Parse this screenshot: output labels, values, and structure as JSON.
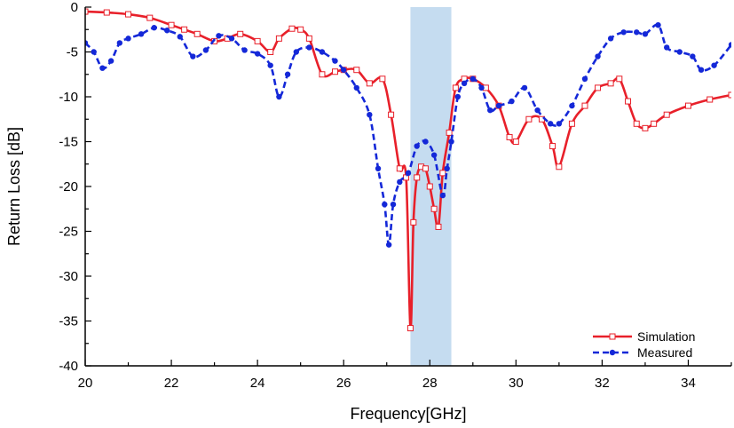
{
  "chart_data": {
    "type": "line",
    "xlabel": "Frequency[GHz]",
    "ylabel": "Return Loss [dB]",
    "xlim": [
      20,
      35
    ],
    "ylim": [
      -40,
      0
    ],
    "xticks": [
      20,
      22,
      24,
      26,
      28,
      30,
      32,
      34
    ],
    "yticks": [
      0,
      -5,
      -10,
      -15,
      -20,
      -25,
      -30,
      -35,
      -40
    ],
    "legend_position": "bottom-right",
    "shaded_band": {
      "x_start": 27.55,
      "x_end": 28.5,
      "color": "#c5dcf0"
    },
    "series": [
      {
        "name": "Simulation",
        "color": "#e8202a",
        "style": "solid",
        "marker": "open-square",
        "x": [
          20.0,
          20.5,
          21.0,
          21.5,
          22.0,
          22.3,
          22.6,
          23.0,
          23.3,
          23.6,
          24.0,
          24.3,
          24.5,
          24.8,
          25.0,
          25.2,
          25.5,
          25.8,
          26.0,
          26.3,
          26.6,
          26.9,
          27.1,
          27.3,
          27.45,
          27.55,
          27.62,
          27.7,
          27.8,
          27.9,
          28.0,
          28.1,
          28.2,
          28.3,
          28.45,
          28.6,
          28.8,
          29.0,
          29.3,
          29.6,
          29.85,
          30.0,
          30.3,
          30.6,
          30.85,
          31.0,
          31.3,
          31.6,
          31.9,
          32.2,
          32.4,
          32.6,
          32.8,
          33.0,
          33.2,
          33.5,
          34.0,
          34.5,
          35.0
        ],
        "y": [
          -0.5,
          -0.6,
          -0.8,
          -1.2,
          -2.0,
          -2.5,
          -3.0,
          -3.8,
          -3.5,
          -3.0,
          -3.8,
          -5.0,
          -3.5,
          -2.4,
          -2.5,
          -3.5,
          -7.5,
          -7.2,
          -7.0,
          -7.0,
          -8.5,
          -8.0,
          -12.0,
          -18.0,
          -19.0,
          -35.8,
          -24.0,
          -19.0,
          -17.8,
          -18.0,
          -20.0,
          -22.5,
          -24.5,
          -18.5,
          -14.0,
          -9.0,
          -8.0,
          -8.0,
          -9.0,
          -11.0,
          -14.5,
          -15.0,
          -12.5,
          -12.5,
          -15.5,
          -17.8,
          -13.0,
          -11.0,
          -9.0,
          -8.5,
          -8.0,
          -10.5,
          -13.0,
          -13.5,
          -13.0,
          -12.0,
          -11.0,
          -10.3,
          -9.8
        ]
      },
      {
        "name": "Measured",
        "color": "#1428d8",
        "style": "dashed",
        "marker": "filled-circle",
        "x": [
          20.0,
          20.2,
          20.4,
          20.6,
          20.8,
          21.0,
          21.3,
          21.6,
          21.9,
          22.2,
          22.5,
          22.8,
          23.1,
          23.4,
          23.7,
          24.0,
          24.3,
          24.5,
          24.7,
          24.9,
          25.2,
          25.5,
          25.8,
          26.0,
          26.3,
          26.6,
          26.8,
          26.95,
          27.05,
          27.15,
          27.3,
          27.5,
          27.7,
          27.9,
          28.1,
          28.3,
          28.4,
          28.5,
          28.65,
          28.8,
          29.0,
          29.2,
          29.4,
          29.6,
          29.9,
          30.2,
          30.5,
          30.8,
          31.0,
          31.3,
          31.6,
          31.9,
          32.2,
          32.5,
          32.8,
          33.0,
          33.3,
          33.5,
          33.8,
          34.1,
          34.3,
          34.6,
          35.0
        ],
        "y": [
          -4.0,
          -5.0,
          -6.8,
          -6.0,
          -4.0,
          -3.5,
          -3.0,
          -2.3,
          -2.6,
          -3.3,
          -5.5,
          -4.8,
          -3.2,
          -3.5,
          -4.8,
          -5.2,
          -6.5,
          -10.0,
          -7.5,
          -5.0,
          -4.5,
          -5.0,
          -6.0,
          -7.0,
          -9.0,
          -12.0,
          -18.0,
          -22.0,
          -26.5,
          -22.0,
          -19.5,
          -18.5,
          -15.5,
          -15.0,
          -16.5,
          -21.0,
          -18.0,
          -15.0,
          -10.0,
          -8.5,
          -8.0,
          -9.0,
          -11.5,
          -11.0,
          -10.5,
          -9.0,
          -11.5,
          -13.0,
          -13.0,
          -11.0,
          -8.0,
          -5.5,
          -3.5,
          -2.8,
          -2.8,
          -3.0,
          -2.0,
          -4.5,
          -5.0,
          -5.5,
          -7.0,
          -6.5,
          -4.2
        ]
      }
    ]
  }
}
